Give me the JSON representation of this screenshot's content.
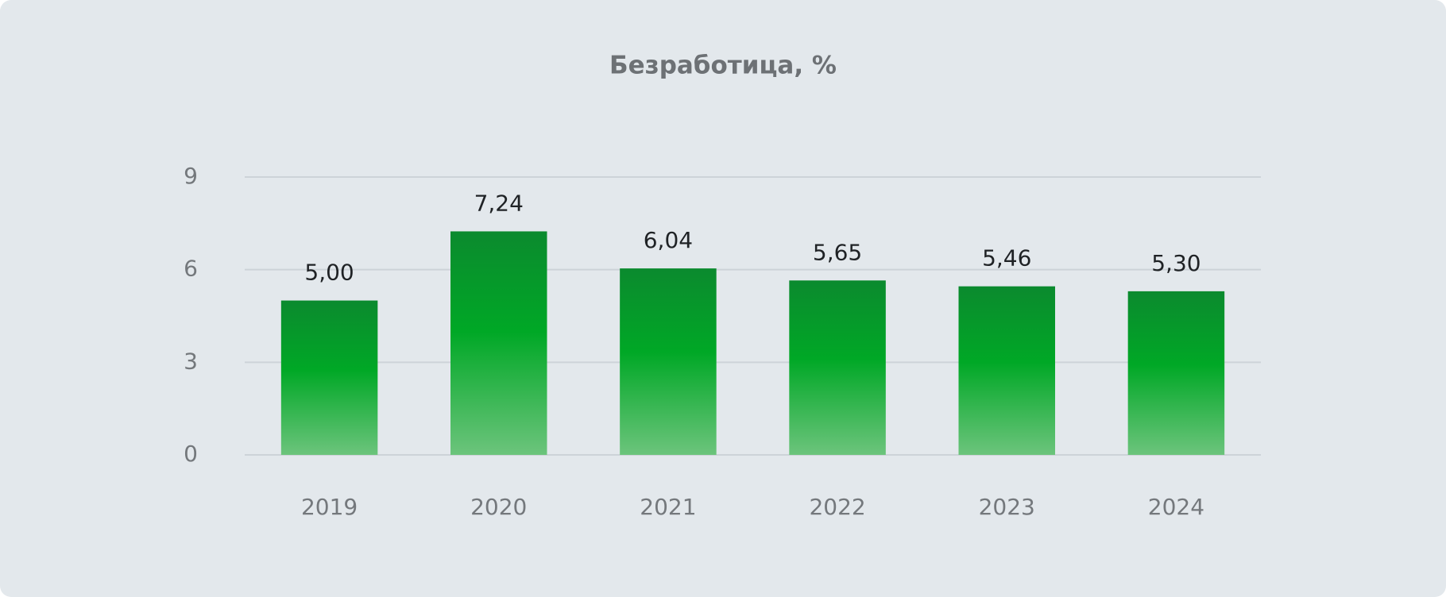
{
  "chart_data": {
    "type": "bar",
    "title": "Безработица, %",
    "categories": [
      "2019",
      "2020",
      "2021",
      "2022",
      "2023",
      "2024"
    ],
    "values": [
      5.0,
      7.24,
      6.04,
      5.65,
      5.46,
      5.3
    ],
    "value_labels": [
      "5,00",
      "7,24",
      "6,04",
      "5,65",
      "5,46",
      "5,30"
    ],
    "color": "#00a826",
    "ylim": [
      0,
      9
    ],
    "yticks": [
      0,
      3,
      6,
      9
    ],
    "grid": true
  }
}
